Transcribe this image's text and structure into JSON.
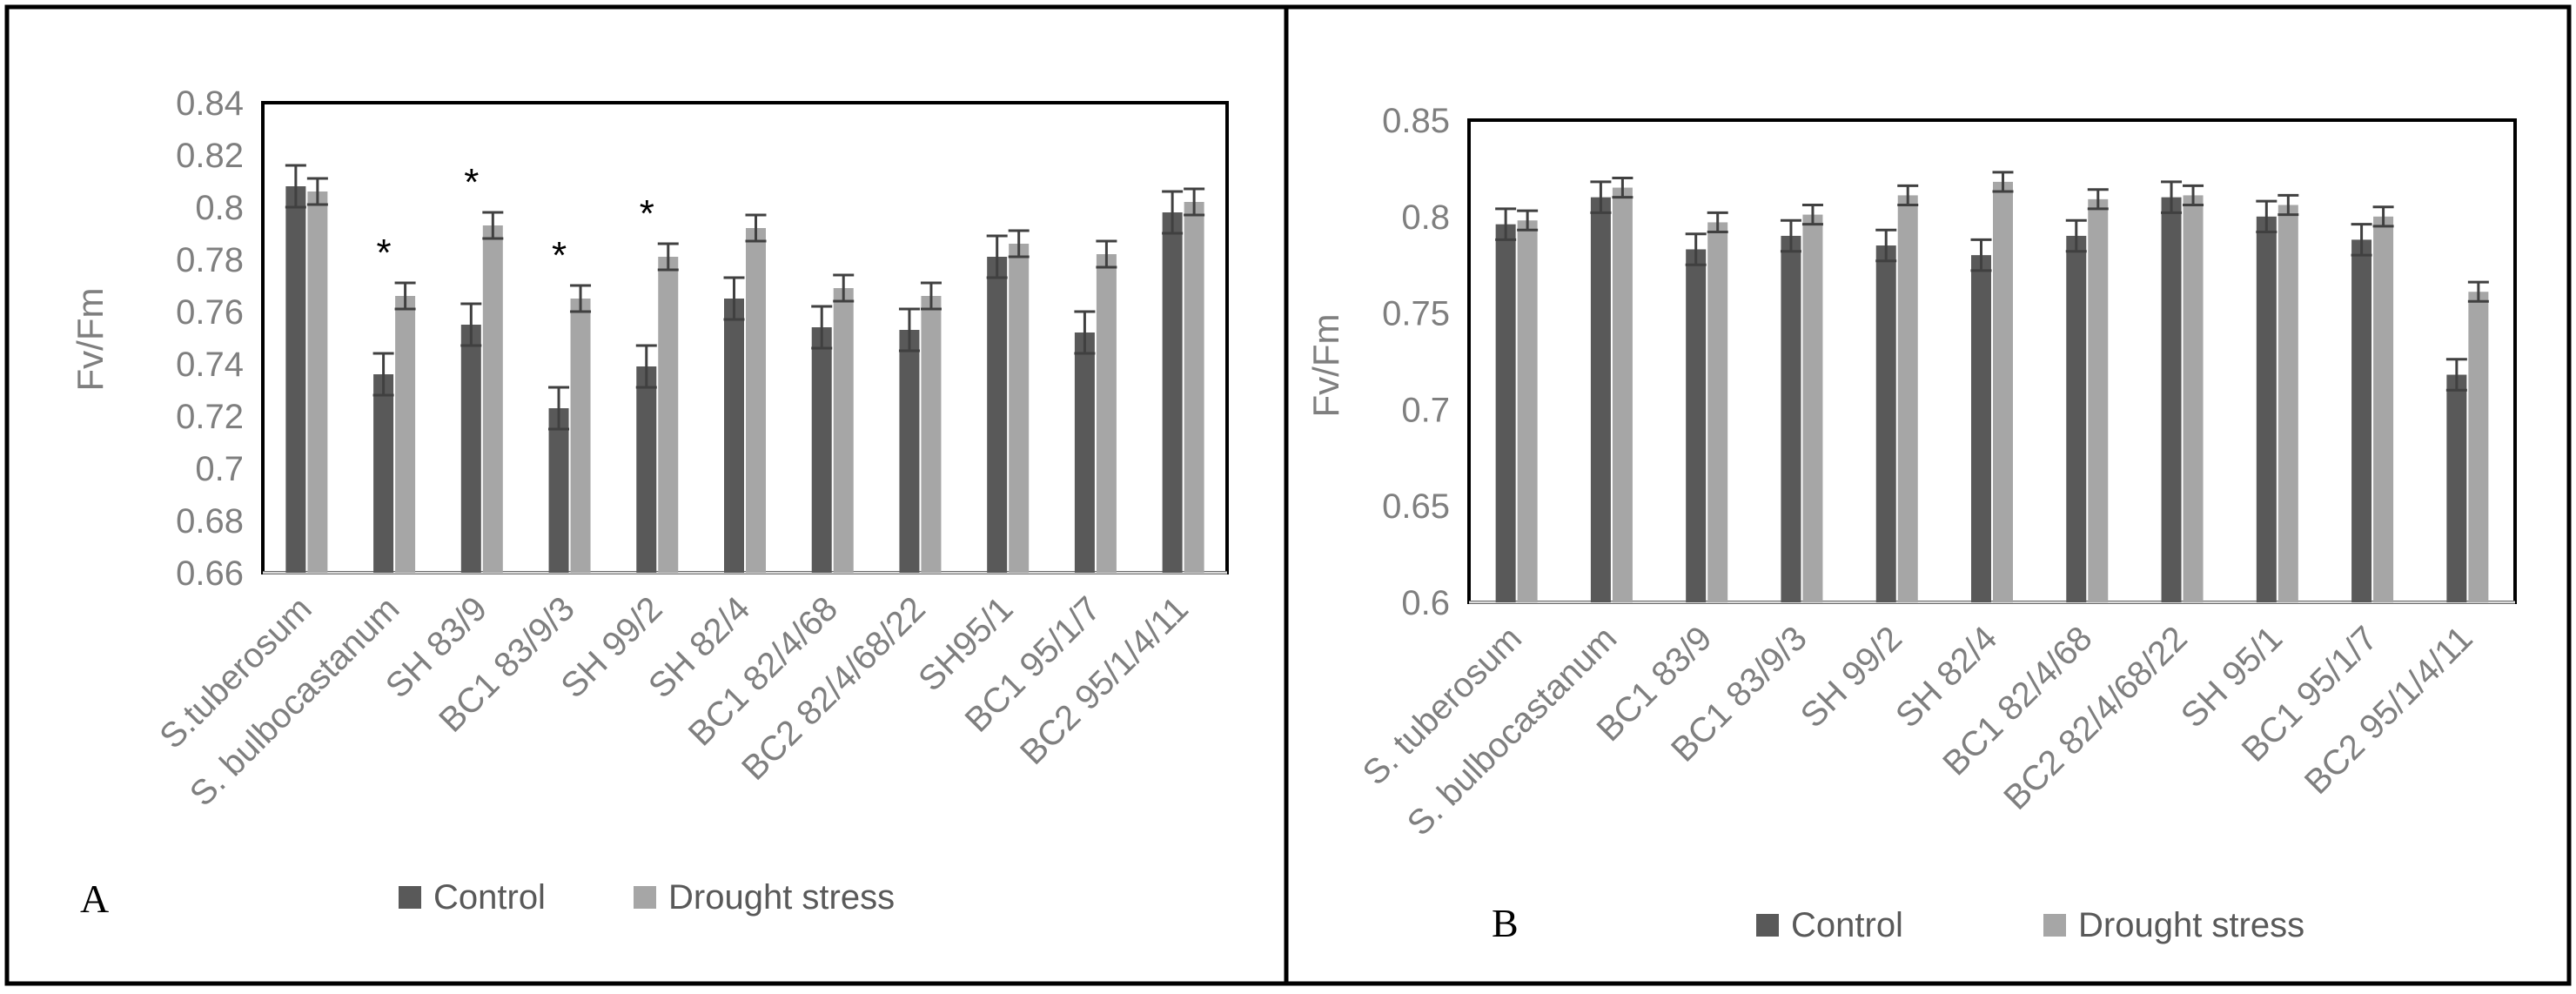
{
  "colors": {
    "control": "#595959",
    "drought": "#a6a6a6",
    "errorbar": "#404040",
    "frame": "#000000",
    "axis_text": "#7f7f7f"
  },
  "chart_data": [
    {
      "type": "bar",
      "panel_label": "A",
      "ylabel": "Fv/Fm",
      "xlabel": "",
      "ylim": [
        0.66,
        0.84
      ],
      "yticks": [
        "0.66",
        "0.68",
        "0.7",
        "0.72",
        "0.74",
        "0.76",
        "0.78",
        "0.8",
        "0.82",
        "0.84"
      ],
      "grid": false,
      "legend_position": "bottom",
      "categories": [
        "S.tuberosum",
        "S. bulbocastanum",
        "SH 83/9",
        "BC1 83/9/3",
        "SH 99/2",
        "SH 82/4",
        "BC1 82/4/68",
        "BC2 82/4/68/22",
        "SH95/1",
        "BC1 95/1/7",
        "BC2 95/1/4/11"
      ],
      "series": [
        {
          "name": "Control",
          "values": [
            0.808,
            0.736,
            0.755,
            0.723,
            0.739,
            0.765,
            0.754,
            0.753,
            0.781,
            0.752,
            0.798
          ],
          "errors": [
            0.008,
            0.008,
            0.008,
            0.008,
            0.008,
            0.008,
            0.008,
            0.008,
            0.008,
            0.008,
            0.008
          ]
        },
        {
          "name": "Drought stress",
          "values": [
            0.806,
            0.766,
            0.793,
            0.765,
            0.781,
            0.792,
            0.769,
            0.766,
            0.786,
            0.782,
            0.802
          ],
          "errors": [
            0.005,
            0.005,
            0.005,
            0.005,
            0.005,
            0.005,
            0.005,
            0.005,
            0.005,
            0.005,
            0.005
          ]
        }
      ],
      "annotations": [
        {
          "category_index": 1,
          "text": "*"
        },
        {
          "category_index": 2,
          "text": "*"
        },
        {
          "category_index": 3,
          "text": "*"
        },
        {
          "category_index": 4,
          "text": "*"
        }
      ]
    },
    {
      "type": "bar",
      "panel_label": "B",
      "ylabel": "Fv/Fm",
      "xlabel": "",
      "ylim": [
        0.6,
        0.85
      ],
      "yticks": [
        "0.6",
        "0.65",
        "0.7",
        "0.75",
        "0.8",
        "0.85"
      ],
      "grid": false,
      "legend_position": "bottom",
      "categories": [
        "S. tuberosum",
        "S. bulbocastanum",
        "BC1 83/9",
        "BC1 83/9/3",
        "SH 99/2",
        "SH 82/4",
        "BC1 82/4/68",
        "BC2 82/4/68/22",
        "SH 95/1",
        "BC1 95/1/7",
        "BC2 95/1/4/11"
      ],
      "series": [
        {
          "name": "Control",
          "values": [
            0.796,
            0.81,
            0.783,
            0.79,
            0.785,
            0.78,
            0.79,
            0.81,
            0.8,
            0.788,
            0.718
          ],
          "errors": [
            0.008,
            0.008,
            0.008,
            0.008,
            0.008,
            0.008,
            0.008,
            0.008,
            0.008,
            0.008,
            0.008
          ]
        },
        {
          "name": "Drought stress",
          "values": [
            0.798,
            0.815,
            0.797,
            0.801,
            0.811,
            0.818,
            0.809,
            0.811,
            0.806,
            0.8,
            0.761
          ],
          "errors": [
            0.005,
            0.005,
            0.005,
            0.005,
            0.005,
            0.005,
            0.005,
            0.005,
            0.005,
            0.005,
            0.005
          ]
        }
      ],
      "annotations": []
    }
  ]
}
